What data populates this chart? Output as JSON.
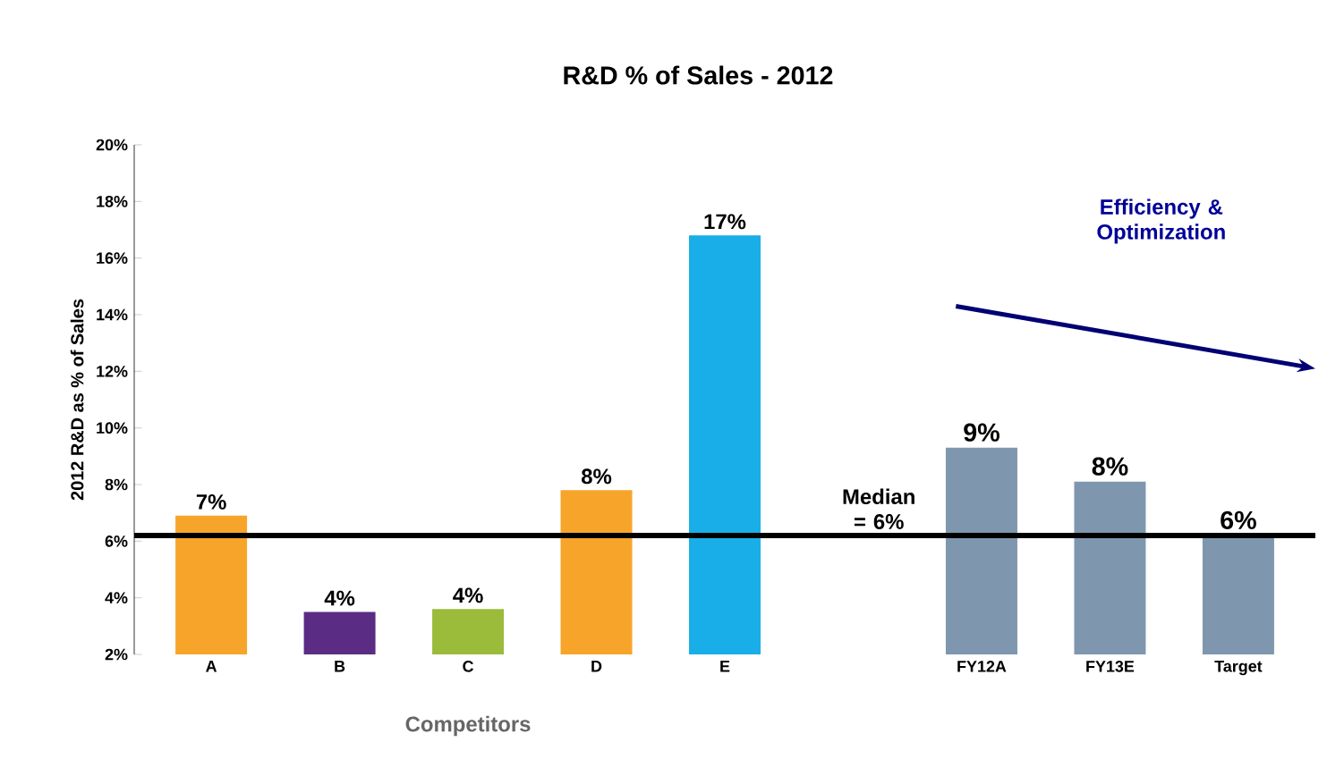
{
  "chart_data": {
    "type": "bar",
    "title": "R&D % of Sales - 2012",
    "xlabel": "Competitors",
    "ylabel": "2012 R&D as % of Sales",
    "categories": [
      "A",
      "B",
      "C",
      "D",
      "E",
      null,
      "FY12A",
      "FY13E",
      "Target"
    ],
    "values": [
      6.9,
      3.5,
      3.6,
      7.8,
      16.8,
      null,
      9.3,
      8.1,
      6.2
    ],
    "colors": [
      "#f7a52a",
      "#5b2c83",
      "#9bbb3b",
      "#f7a52a",
      "#1aaee8",
      "#7f97ae",
      "#7f97ae",
      "#7f97ae",
      "#7f97ae"
    ],
    "value_labels": [
      "7%",
      "4%",
      "4%",
      "8%",
      "17%",
      null,
      "9%",
      "8%",
      "6%"
    ],
    "ylim": [
      2,
      20
    ],
    "yticks": [
      {
        "value": 2,
        "label": "2%"
      },
      {
        "value": 4,
        "label": "4%"
      },
      {
        "value": 6,
        "label": "6%"
      },
      {
        "value": 8,
        "label": "8%"
      },
      {
        "value": 10,
        "label": "10%"
      },
      {
        "value": 12,
        "label": "12%"
      },
      {
        "value": 14,
        "label": "14%"
      },
      {
        "value": 16,
        "label": "16%"
      },
      {
        "value": 18,
        "label": "18%"
      },
      {
        "value": 20,
        "label": "20%"
      }
    ],
    "ref_lines": [
      {
        "axis": "y",
        "value": 6.2,
        "label": "Median = 6%",
        "color": "#000000"
      }
    ],
    "annotations": [
      "Efficiency & Optimization"
    ],
    "grid": false
  }
}
